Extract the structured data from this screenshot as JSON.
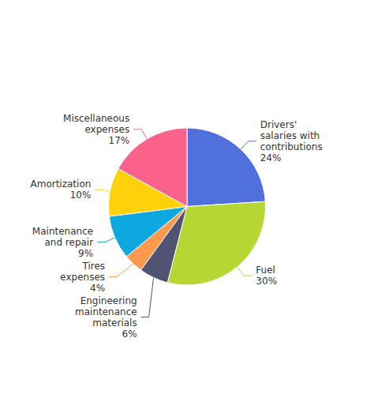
{
  "chart_data": {
    "type": "pie",
    "categories": [
      "Drivers'\nsalaries with\ncontributions",
      "Fuel",
      "Engineering\nmaintenance\nmaterials",
      "Tires\nexpenses",
      "Maintenance\nand repair",
      "Amortization",
      "Miscellaneous\nexpenses"
    ],
    "values": [
      24,
      30,
      6,
      4,
      9,
      10,
      17
    ],
    "value_labels": [
      "24%",
      "30%",
      "6%",
      "4%",
      "9%",
      "10%",
      "17%"
    ],
    "data_labels": true,
    "legend": false
  }
}
